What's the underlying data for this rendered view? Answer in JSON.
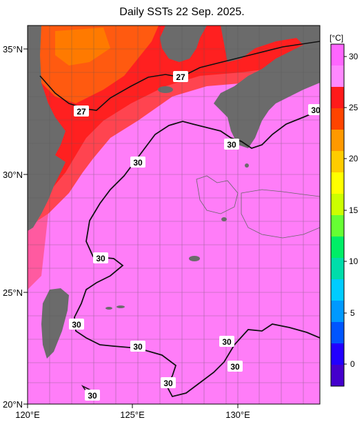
{
  "title": "Daily SSTs 22 Sep. 2025.",
  "lat_labels": [
    "35°N",
    "30°N",
    "25°N",
    "20°N"
  ],
  "lon_labels": [
    "120°E",
    "125°E",
    "130°E"
  ],
  "colorbar": {
    "unit": "[°C]",
    "ticks": [
      "30",
      "25",
      "20",
      "15",
      "10",
      "5",
      "0"
    ],
    "colors": [
      "#ff66ff",
      "#ff88ff",
      "#ff1a1a",
      "#ff4400",
      "#ff9900",
      "#ffcc00",
      "#ffff00",
      "#ccff00",
      "#66ff33",
      "#00ee66",
      "#00ddaa",
      "#00ccff",
      "#0099ff",
      "#0055ff",
      "#2200ff",
      "#4400cc"
    ]
  },
  "contour_labels": [
    "27",
    "27",
    "30",
    "30",
    "30",
    "30",
    "30",
    "30",
    "30",
    "30",
    "30",
    "30"
  ],
  "map_colors": {
    "land": "#6b6b6b",
    "warm": "#ff66ff",
    "hot": "#ff1e1e",
    "orange": "#ff6a00"
  }
}
